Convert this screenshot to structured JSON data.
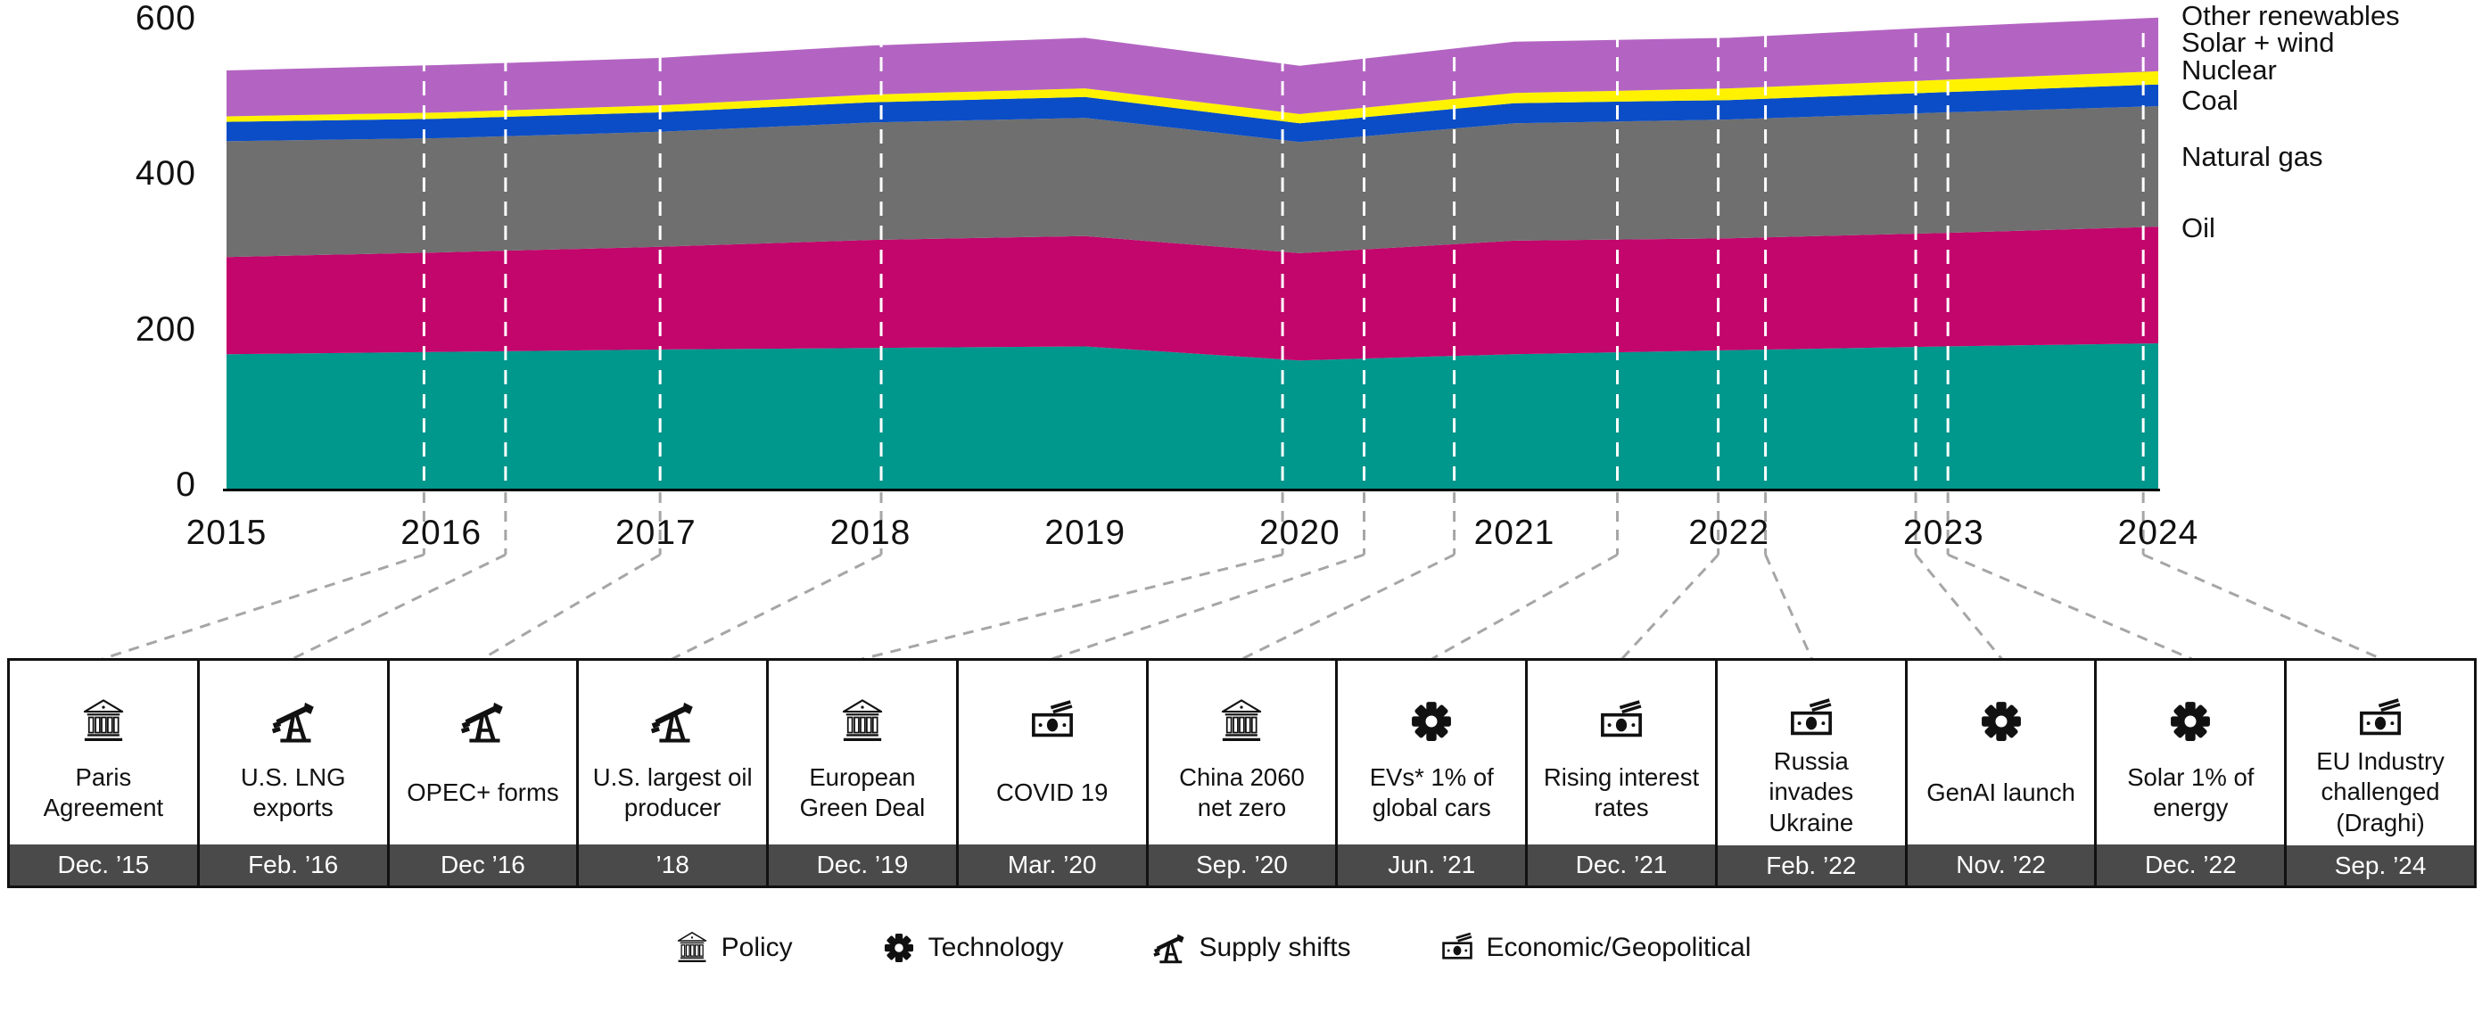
{
  "page": {
    "background": "#FFFFFF"
  },
  "chart_data": {
    "type": "area",
    "stacked": true,
    "title": "",
    "xlabel": "",
    "ylabel": "",
    "x": [
      2015,
      2016,
      2017,
      2018,
      2019,
      2020,
      2021,
      2022,
      2023,
      2024
    ],
    "ylim": [
      0,
      600
    ],
    "yticks": [
      0,
      200,
      400,
      600
    ],
    "grid": false,
    "legend_position": "right-outside",
    "marker_line_color": "#FFFFFF",
    "series": [
      {
        "name": "Oil",
        "color": "#00978C",
        "values": [
          173,
          176,
          179,
          181,
          183,
          165,
          173,
          178,
          183,
          187
        ]
      },
      {
        "name": "Natural gas",
        "color": "#C2066C",
        "values": [
          125,
          128,
          132,
          139,
          142,
          138,
          146,
          144,
          146,
          150
        ]
      },
      {
        "name": "Coal",
        "color": "#6F6F6F",
        "values": [
          149,
          147,
          148,
          151,
          152,
          143,
          151,
          153,
          155,
          155
        ]
      },
      {
        "name": "Nuclear",
        "color": "#0B4DC6",
        "values": [
          25,
          25,
          25,
          26,
          27,
          24,
          26,
          25,
          26,
          28
        ]
      },
      {
        "name": "Solar + wind",
        "color": "#FFF200",
        "values": [
          7,
          8,
          9,
          10,
          11,
          12,
          13,
          15,
          16,
          17
        ]
      },
      {
        "name": "Other renewables",
        "color": "#B364C2",
        "values": [
          59,
          61,
          61,
          63,
          65,
          62,
          66,
          65,
          68,
          69
        ]
      }
    ],
    "label_order_top_to_bottom": [
      "Other renewables",
      "Solar + wind",
      "Nuclear",
      "Coal",
      "Natural gas",
      "Oil"
    ]
  },
  "events": [
    {
      "title": "Paris Agreement",
      "date": "Dec. ’15",
      "category": "policy",
      "marker_year": 2015.92
    },
    {
      "title": "U.S. LNG exports",
      "date": "Feb. ’16",
      "category": "supply",
      "marker_year": 2016.3
    },
    {
      "title": "OPEC+ forms",
      "date": "Dec ’16",
      "category": "supply",
      "marker_year": 2017.02
    },
    {
      "title": "U.S. largest oil producer",
      "date": "’18",
      "category": "supply",
      "marker_year": 2018.05
    },
    {
      "title": "European Green Deal",
      "date": "Dec. ’19",
      "category": "policy",
      "marker_year": 2019.92
    },
    {
      "title": "COVID 19",
      "date": "Mar. ’20",
      "category": "economic",
      "marker_year": 2020.3
    },
    {
      "title": "China 2060 net zero",
      "date": "Sep. ’20",
      "category": "policy",
      "marker_year": 2020.72
    },
    {
      "title": "EVs* 1% of global cars",
      "date": "Jun. ’21",
      "category": "technology",
      "marker_year": 2021.48
    },
    {
      "title": "Rising interest rates",
      "date": "Dec. ’21",
      "category": "economic",
      "marker_year": 2021.95
    },
    {
      "title": "Russia invades Ukraine",
      "date": "Feb. ’22",
      "category": "economic",
      "marker_year": 2022.17
    },
    {
      "title": "GenAI launch",
      "date": "Nov. ’22",
      "category": "technology",
      "marker_year": 2022.87
    },
    {
      "title": "Solar 1% of energy",
      "date": "Dec. ’22",
      "category": "technology",
      "marker_year": 2023.02
    },
    {
      "title": "EU Industry challenged (Draghi)",
      "date": "Sep. ’24",
      "category": "economic",
      "marker_year": 2023.93
    }
  ],
  "legend": {
    "items": [
      {
        "label": "Policy",
        "category": "policy"
      },
      {
        "label": "Technology",
        "category": "technology"
      },
      {
        "label": "Supply shifts",
        "category": "supply"
      },
      {
        "label": "Economic/Geopolitical",
        "category": "economic"
      }
    ]
  },
  "colors": {
    "date_bar": "#4A4A4A",
    "date_text": "#FFFFFF",
    "event_border": "#111111",
    "connector": "#A6A6A6",
    "axis_text": "#111111",
    "baseline": "#000000",
    "icon": "#111111"
  }
}
